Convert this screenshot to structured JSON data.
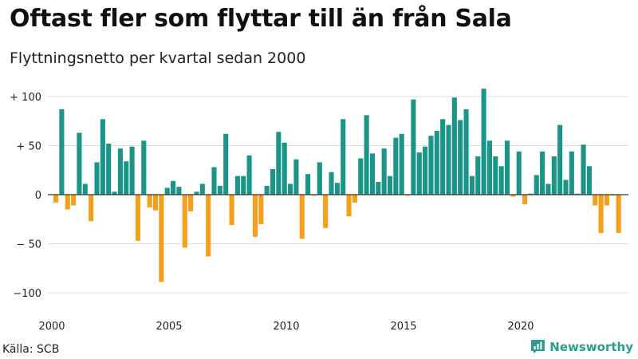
{
  "title": "Oftast fler som flyttar till än från Sala",
  "subtitle": "Flyttningsnetto per kvartal sedan 2000",
  "source": "Källa: SCB",
  "brand": {
    "name": "Newsworthy",
    "icon": "newsworthy-logo-icon"
  },
  "colors": {
    "positive": "#1a9587",
    "negative": "#f5a01a",
    "grid": "#dddddd",
    "zero_line": "#333333"
  },
  "chart_data": {
    "type": "bar",
    "title": "Oftast fler som flyttar till än från Sala",
    "subtitle": "Flyttningsnetto per kvartal sedan 2000",
    "xlabel": "",
    "ylabel": "",
    "grid": true,
    "legend": "none",
    "x_start": {
      "year": 2000,
      "quarter": 1
    },
    "period": "quarter",
    "ylim": [
      -110,
      110
    ],
    "y_ticks": [
      {
        "value": 100,
        "label": "+ 100"
      },
      {
        "value": 50,
        "label": "+ 50"
      },
      {
        "value": 0,
        "label": "0"
      },
      {
        "value": -50,
        "label": "− 50"
      },
      {
        "value": -100,
        "label": "−100"
      }
    ],
    "x_ticks": [
      {
        "year": 2000,
        "label": "2000"
      },
      {
        "year": 2005,
        "label": "2005"
      },
      {
        "year": 2010,
        "label": "2010"
      },
      {
        "year": 2015,
        "label": "2015"
      },
      {
        "year": 2020,
        "label": "2020"
      }
    ],
    "values": [
      -8,
      87,
      -15,
      -11,
      63,
      11,
      -27,
      33,
      77,
      52,
      3,
      47,
      34,
      49,
      -47,
      55,
      -13,
      -16,
      -89,
      7,
      14,
      8,
      -54,
      -17,
      3,
      11,
      -63,
      28,
      9,
      62,
      -31,
      19,
      19,
      40,
      -43,
      -30,
      9,
      26,
      64,
      53,
      11,
      36,
      -45,
      21,
      -1,
      33,
      -34,
      23,
      12,
      77,
      -22,
      -8,
      37,
      81,
      42,
      13,
      47,
      19,
      58,
      62,
      -1,
      97,
      43,
      49,
      60,
      65,
      77,
      71,
      99,
      76,
      87,
      19,
      39,
      108,
      55,
      39,
      29,
      55,
      -2,
      44,
      -10,
      1,
      20,
      44,
      11,
      39,
      71,
      15,
      44,
      1,
      51,
      29,
      -11,
      -39,
      -11,
      -1,
      -39
    ]
  }
}
